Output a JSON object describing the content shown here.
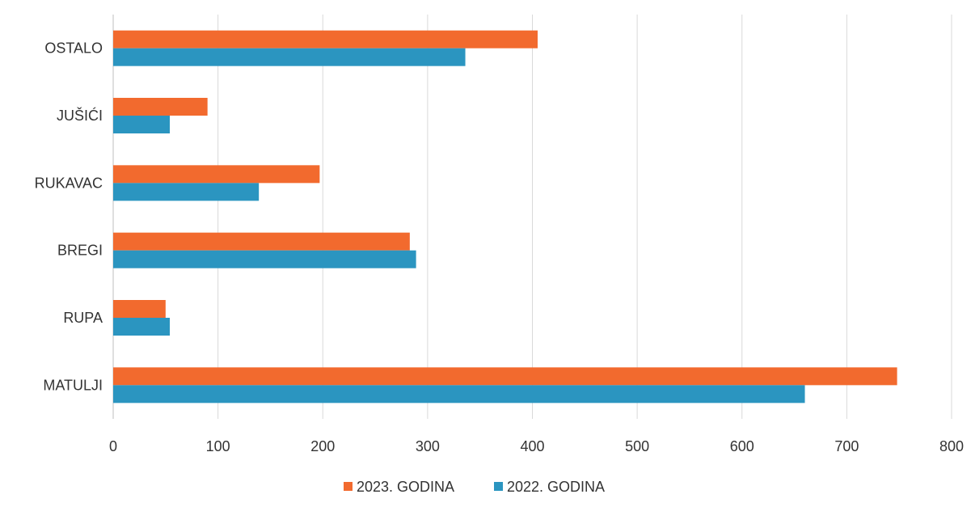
{
  "chart_data": {
    "type": "bar",
    "orientation": "horizontal",
    "categories": [
      "MATULJI",
      "RUPA",
      "BREGI",
      "RUKAVAC",
      "JUŠIĆI",
      "OSTALO"
    ],
    "series": [
      {
        "name": "2023. GODINA",
        "color": "#f26a2e",
        "values": [
          748,
          50,
          283,
          197,
          90,
          405
        ]
      },
      {
        "name": "2022. GODINA",
        "color": "#2b95c0",
        "values": [
          660,
          54,
          289,
          139,
          54,
          336
        ]
      }
    ],
    "xlim": [
      0,
      800
    ],
    "ticks": [
      0,
      100,
      200,
      300,
      400,
      500,
      600,
      700,
      800
    ],
    "title": "",
    "xlabel": "",
    "ylabel": "",
    "grid": "vertical",
    "legend_position": "bottom"
  }
}
